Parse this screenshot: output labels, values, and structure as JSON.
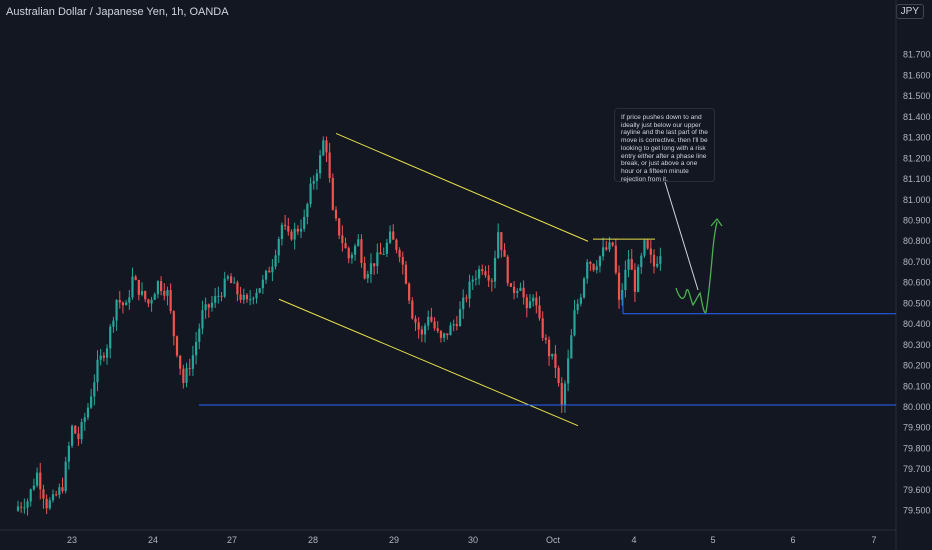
{
  "header": {
    "title": "Australian Dollar / Japanese Yen, 1h, OANDA",
    "currency_badge": "JPY"
  },
  "annotation": {
    "text": "If price pushes down to and ideally just below our upper rayline and the last part of the move is corrective, then I'll be looking to get long with a risk entry either after a phase line break, or just above a one hour or a fifteen minute rejection from it."
  },
  "colors": {
    "background": "#131722",
    "up": "#26a69a",
    "down": "#ef5350",
    "channel": "#e6e04a",
    "level": "#2962ff",
    "projection": "#4caf50",
    "axis_text": "#b2b5be"
  },
  "chart_data": {
    "type": "candlestick",
    "y_axis": {
      "position": "right",
      "range": [
        79.45,
        81.8
      ],
      "ticks": [
        "81.700",
        "81.600",
        "81.500",
        "81.400",
        "81.300",
        "81.200",
        "81.100",
        "81.000",
        "80.900",
        "80.800",
        "80.700",
        "80.600",
        "80.500",
        "80.400",
        "80.300",
        "80.200",
        "80.100",
        "80.000",
        "79.900",
        "79.800",
        "79.700",
        "79.600",
        "79.500"
      ]
    },
    "x_axis": {
      "labels": [
        "23",
        "24",
        "27",
        "28",
        "29",
        "30",
        "Oct",
        "4",
        "5",
        "6",
        "7"
      ]
    },
    "price_path": [
      [
        0,
        79.52
      ],
      [
        3,
        79.55
      ],
      [
        6,
        79.68
      ],
      [
        9,
        79.53
      ],
      [
        11,
        79.55
      ],
      [
        14,
        79.62
      ],
      [
        17,
        79.9
      ],
      [
        19,
        79.85
      ],
      [
        22,
        80.0
      ],
      [
        25,
        80.2
      ],
      [
        28,
        80.3
      ],
      [
        31,
        80.52
      ],
      [
        34,
        80.48
      ],
      [
        36,
        80.62
      ],
      [
        39,
        80.54
      ],
      [
        41,
        80.5
      ],
      [
        44,
        80.6
      ],
      [
        47,
        80.55
      ],
      [
        49,
        80.35
      ],
      [
        52,
        80.12
      ],
      [
        55,
        80.25
      ],
      [
        58,
        80.45
      ],
      [
        61,
        80.5
      ],
      [
        64,
        80.56
      ],
      [
        66,
        80.62
      ],
      [
        69,
        80.55
      ],
      [
        72,
        80.5
      ],
      [
        74,
        80.55
      ],
      [
        77,
        80.6
      ],
      [
        80,
        80.7
      ],
      [
        83,
        80.88
      ],
      [
        85,
        80.82
      ],
      [
        88,
        80.86
      ],
      [
        90,
        80.9
      ],
      [
        92,
        81.05
      ],
      [
        95,
        81.2
      ],
      [
        96,
        81.28
      ],
      [
        97,
        81.25
      ],
      [
        99,
        80.93
      ],
      [
        102,
        80.8
      ],
      [
        104,
        80.72
      ],
      [
        107,
        80.8
      ],
      [
        109,
        80.65
      ],
      [
        112,
        80.7
      ],
      [
        115,
        80.75
      ],
      [
        117,
        80.82
      ],
      [
        120,
        80.75
      ],
      [
        122,
        80.62
      ],
      [
        124,
        80.45
      ],
      [
        127,
        80.34
      ],
      [
        129,
        80.45
      ],
      [
        131,
        80.38
      ],
      [
        133,
        80.32
      ],
      [
        136,
        80.38
      ],
      [
        138,
        80.42
      ],
      [
        140,
        80.5
      ],
      [
        143,
        80.62
      ],
      [
        146,
        80.68
      ],
      [
        149,
        80.62
      ],
      [
        151,
        80.85
      ],
      [
        152,
        80.78
      ],
      [
        155,
        80.55
      ],
      [
        158,
        80.6
      ],
      [
        160,
        80.45
      ],
      [
        162,
        80.55
      ],
      [
        164,
        80.4
      ],
      [
        167,
        80.26
      ],
      [
        169,
        80.2
      ],
      [
        171,
        80.0
      ],
      [
        173,
        80.22
      ],
      [
        175,
        80.45
      ],
      [
        177,
        80.55
      ],
      [
        179,
        80.72
      ],
      [
        181,
        80.68
      ],
      [
        184,
        80.75
      ],
      [
        187,
        80.78
      ],
      [
        189,
        80.5
      ],
      [
        192,
        80.72
      ],
      [
        194,
        80.58
      ],
      [
        197,
        80.78
      ],
      [
        200,
        80.68
      ],
      [
        202,
        80.75
      ]
    ],
    "lines": [
      {
        "name": "upper channel",
        "from": [
          "28",
          "81.32"
        ],
        "to": [
          "Oct",
          "80.80"
        ]
      },
      {
        "name": "lower channel",
        "from": [
          "27",
          "80.52"
        ],
        "to": [
          "Oct",
          "79.91"
        ]
      },
      {
        "name": "range top",
        "from": [
          "Oct",
          "80.81"
        ],
        "to": [
          "4",
          "80.81"
        ]
      },
      {
        "name": "support ray",
        "from": [
          "24",
          "80.01"
        ],
        "to": [
          "7+",
          "80.01"
        ]
      },
      {
        "name": "upper ray",
        "from": [
          "Oct",
          "80.45"
        ],
        "to": [
          "7+",
          "80.45"
        ]
      }
    ]
  }
}
